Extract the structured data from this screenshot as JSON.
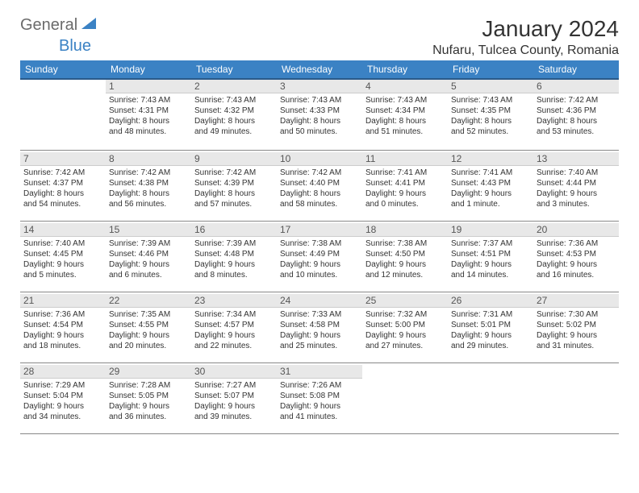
{
  "logo": {
    "text_gray": "General",
    "text_blue": "Blue"
  },
  "title": "January 2024",
  "location": "Nufaru, Tulcea County, Romania",
  "header_bg": "#3b82c4",
  "header_text_color": "#ffffff",
  "daynum_bg": "#e8e8e8",
  "border_color": "#888888",
  "weekdays": [
    "Sunday",
    "Monday",
    "Tuesday",
    "Wednesday",
    "Thursday",
    "Friday",
    "Saturday"
  ],
  "grid": [
    [
      null,
      {
        "n": "1",
        "sr": "Sunrise: 7:43 AM",
        "ss": "Sunset: 4:31 PM",
        "d1": "Daylight: 8 hours",
        "d2": "and 48 minutes."
      },
      {
        "n": "2",
        "sr": "Sunrise: 7:43 AM",
        "ss": "Sunset: 4:32 PM",
        "d1": "Daylight: 8 hours",
        "d2": "and 49 minutes."
      },
      {
        "n": "3",
        "sr": "Sunrise: 7:43 AM",
        "ss": "Sunset: 4:33 PM",
        "d1": "Daylight: 8 hours",
        "d2": "and 50 minutes."
      },
      {
        "n": "4",
        "sr": "Sunrise: 7:43 AM",
        "ss": "Sunset: 4:34 PM",
        "d1": "Daylight: 8 hours",
        "d2": "and 51 minutes."
      },
      {
        "n": "5",
        "sr": "Sunrise: 7:43 AM",
        "ss": "Sunset: 4:35 PM",
        "d1": "Daylight: 8 hours",
        "d2": "and 52 minutes."
      },
      {
        "n": "6",
        "sr": "Sunrise: 7:42 AM",
        "ss": "Sunset: 4:36 PM",
        "d1": "Daylight: 8 hours",
        "d2": "and 53 minutes."
      }
    ],
    [
      {
        "n": "7",
        "sr": "Sunrise: 7:42 AM",
        "ss": "Sunset: 4:37 PM",
        "d1": "Daylight: 8 hours",
        "d2": "and 54 minutes."
      },
      {
        "n": "8",
        "sr": "Sunrise: 7:42 AM",
        "ss": "Sunset: 4:38 PM",
        "d1": "Daylight: 8 hours",
        "d2": "and 56 minutes."
      },
      {
        "n": "9",
        "sr": "Sunrise: 7:42 AM",
        "ss": "Sunset: 4:39 PM",
        "d1": "Daylight: 8 hours",
        "d2": "and 57 minutes."
      },
      {
        "n": "10",
        "sr": "Sunrise: 7:42 AM",
        "ss": "Sunset: 4:40 PM",
        "d1": "Daylight: 8 hours",
        "d2": "and 58 minutes."
      },
      {
        "n": "11",
        "sr": "Sunrise: 7:41 AM",
        "ss": "Sunset: 4:41 PM",
        "d1": "Daylight: 9 hours",
        "d2": "and 0 minutes."
      },
      {
        "n": "12",
        "sr": "Sunrise: 7:41 AM",
        "ss": "Sunset: 4:43 PM",
        "d1": "Daylight: 9 hours",
        "d2": "and 1 minute."
      },
      {
        "n": "13",
        "sr": "Sunrise: 7:40 AM",
        "ss": "Sunset: 4:44 PM",
        "d1": "Daylight: 9 hours",
        "d2": "and 3 minutes."
      }
    ],
    [
      {
        "n": "14",
        "sr": "Sunrise: 7:40 AM",
        "ss": "Sunset: 4:45 PM",
        "d1": "Daylight: 9 hours",
        "d2": "and 5 minutes."
      },
      {
        "n": "15",
        "sr": "Sunrise: 7:39 AM",
        "ss": "Sunset: 4:46 PM",
        "d1": "Daylight: 9 hours",
        "d2": "and 6 minutes."
      },
      {
        "n": "16",
        "sr": "Sunrise: 7:39 AM",
        "ss": "Sunset: 4:48 PM",
        "d1": "Daylight: 9 hours",
        "d2": "and 8 minutes."
      },
      {
        "n": "17",
        "sr": "Sunrise: 7:38 AM",
        "ss": "Sunset: 4:49 PM",
        "d1": "Daylight: 9 hours",
        "d2": "and 10 minutes."
      },
      {
        "n": "18",
        "sr": "Sunrise: 7:38 AM",
        "ss": "Sunset: 4:50 PM",
        "d1": "Daylight: 9 hours",
        "d2": "and 12 minutes."
      },
      {
        "n": "19",
        "sr": "Sunrise: 7:37 AM",
        "ss": "Sunset: 4:51 PM",
        "d1": "Daylight: 9 hours",
        "d2": "and 14 minutes."
      },
      {
        "n": "20",
        "sr": "Sunrise: 7:36 AM",
        "ss": "Sunset: 4:53 PM",
        "d1": "Daylight: 9 hours",
        "d2": "and 16 minutes."
      }
    ],
    [
      {
        "n": "21",
        "sr": "Sunrise: 7:36 AM",
        "ss": "Sunset: 4:54 PM",
        "d1": "Daylight: 9 hours",
        "d2": "and 18 minutes."
      },
      {
        "n": "22",
        "sr": "Sunrise: 7:35 AM",
        "ss": "Sunset: 4:55 PM",
        "d1": "Daylight: 9 hours",
        "d2": "and 20 minutes."
      },
      {
        "n": "23",
        "sr": "Sunrise: 7:34 AM",
        "ss": "Sunset: 4:57 PM",
        "d1": "Daylight: 9 hours",
        "d2": "and 22 minutes."
      },
      {
        "n": "24",
        "sr": "Sunrise: 7:33 AM",
        "ss": "Sunset: 4:58 PM",
        "d1": "Daylight: 9 hours",
        "d2": "and 25 minutes."
      },
      {
        "n": "25",
        "sr": "Sunrise: 7:32 AM",
        "ss": "Sunset: 5:00 PM",
        "d1": "Daylight: 9 hours",
        "d2": "and 27 minutes."
      },
      {
        "n": "26",
        "sr": "Sunrise: 7:31 AM",
        "ss": "Sunset: 5:01 PM",
        "d1": "Daylight: 9 hours",
        "d2": "and 29 minutes."
      },
      {
        "n": "27",
        "sr": "Sunrise: 7:30 AM",
        "ss": "Sunset: 5:02 PM",
        "d1": "Daylight: 9 hours",
        "d2": "and 31 minutes."
      }
    ],
    [
      {
        "n": "28",
        "sr": "Sunrise: 7:29 AM",
        "ss": "Sunset: 5:04 PM",
        "d1": "Daylight: 9 hours",
        "d2": "and 34 minutes."
      },
      {
        "n": "29",
        "sr": "Sunrise: 7:28 AM",
        "ss": "Sunset: 5:05 PM",
        "d1": "Daylight: 9 hours",
        "d2": "and 36 minutes."
      },
      {
        "n": "30",
        "sr": "Sunrise: 7:27 AM",
        "ss": "Sunset: 5:07 PM",
        "d1": "Daylight: 9 hours",
        "d2": "and 39 minutes."
      },
      {
        "n": "31",
        "sr": "Sunrise: 7:26 AM",
        "ss": "Sunset: 5:08 PM",
        "d1": "Daylight: 9 hours",
        "d2": "and 41 minutes."
      },
      null,
      null,
      null
    ]
  ]
}
